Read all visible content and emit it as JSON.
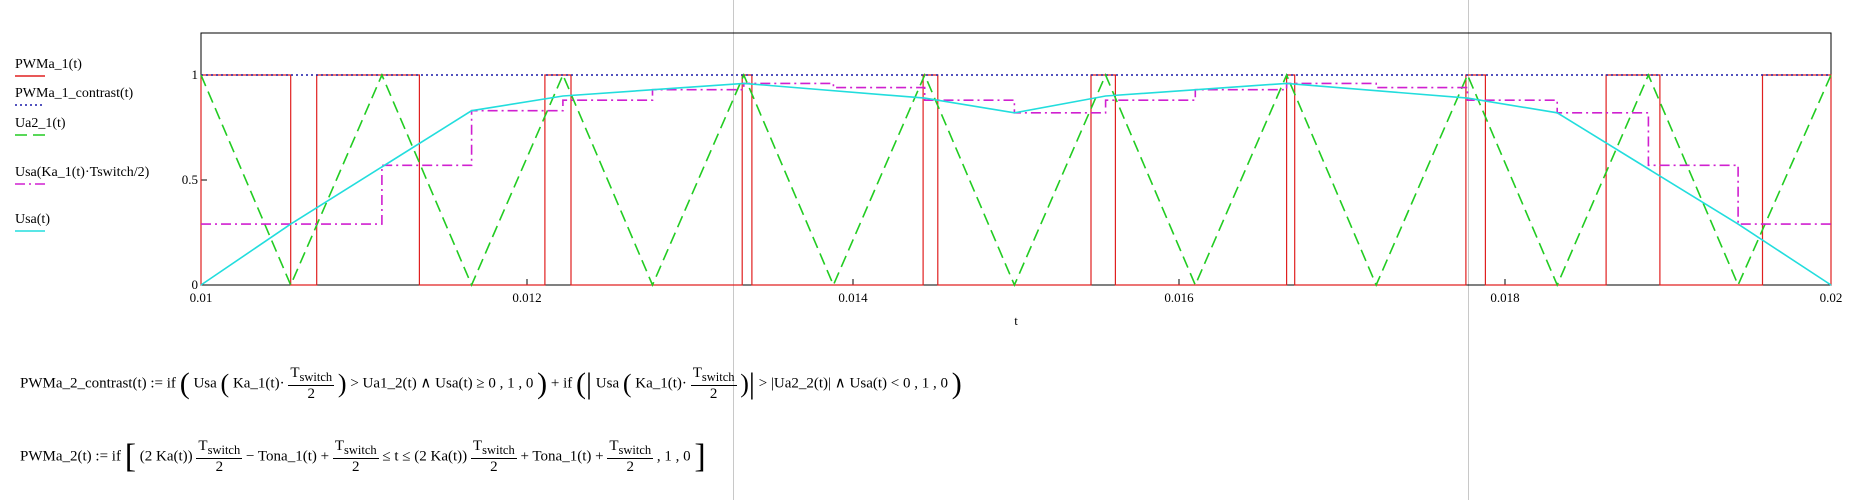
{
  "chart_data": {
    "type": "line",
    "xlabel": "t",
    "xlim": [
      0.01,
      0.02
    ],
    "ylim": [
      0,
      1.2
    ],
    "x_ticks": [
      {
        "value": 0.01,
        "label": "0.01"
      },
      {
        "value": 0.012,
        "label": "0.012"
      },
      {
        "value": 0.014,
        "label": "0.014"
      },
      {
        "value": 0.016,
        "label": "0.016"
      },
      {
        "value": 0.018,
        "label": "0.018"
      },
      {
        "value": 0.02,
        "label": "0.02"
      }
    ],
    "y_ticks": [
      {
        "value": 0,
        "label": "0"
      },
      {
        "value": 0.5,
        "label": "0.5"
      },
      {
        "value": 1,
        "label": "1"
      }
    ],
    "legend": {
      "position": "left",
      "entries": [
        "PWMa_1(t)",
        "PWMa_1_contrast(t)",
        "Ua2_1(t)",
        "Usa(Ka_1(t)·Tswitch/2)",
        "Usa(t)"
      ]
    },
    "series": [
      {
        "name": "PWMa_1(t)",
        "color": "#e02020",
        "style": "solid",
        "kind": "pulses",
        "pulses": [
          [
            0.01,
            0.01055
          ],
          [
            0.01071,
            0.01134
          ],
          [
            0.01211,
            0.01227
          ],
          [
            0.01332,
            0.01338
          ],
          [
            0.01443,
            0.01452
          ],
          [
            0.01546,
            0.01561
          ],
          [
            0.01666,
            0.01671
          ],
          [
            0.01776,
            0.01788
          ],
          [
            0.01862,
            0.01895
          ],
          [
            0.01958,
            0.02
          ]
        ]
      },
      {
        "name": "PWMa_1_contrast(t)",
        "color": "#1a1aa8",
        "style": "dotted",
        "kind": "constant",
        "value": 1
      },
      {
        "name": "Ua2_1(t)",
        "color": "#22cc22",
        "style": "dashed",
        "x": [
          0.01,
          0.01055,
          0.01111,
          0.01166,
          0.01222,
          0.01277,
          0.01333,
          0.01388,
          0.01444,
          0.01499,
          0.01555,
          0.0161,
          0.01666,
          0.01721,
          0.01777,
          0.01832,
          0.01888,
          0.01943,
          0.02
        ],
        "y": [
          1,
          0,
          1,
          0,
          1,
          0,
          1,
          0,
          1,
          0,
          1,
          0,
          1,
          0,
          1,
          0,
          1,
          0,
          1
        ]
      },
      {
        "name": "Usa(Ka_1(t)·Tswitch/2)",
        "color": "#d020d0",
        "style": "dashdot",
        "kind": "step",
        "x": [
          0.01,
          0.01111,
          0.01166,
          0.01222,
          0.01277,
          0.01333,
          0.01388,
          0.01444,
          0.01499,
          0.01555,
          0.0161,
          0.01666,
          0.01721,
          0.01777,
          0.01832,
          0.01888,
          0.01943,
          0.02
        ],
        "y": [
          0.29,
          0.57,
          0.83,
          0.88,
          0.93,
          0.96,
          0.94,
          0.88,
          0.82,
          0.88,
          0.93,
          0.96,
          0.94,
          0.88,
          0.82,
          0.57,
          0.29,
          0.29
        ]
      },
      {
        "name": "Usa(t)",
        "color": "#22dddd",
        "style": "solid",
        "x": [
          0.01,
          0.01055,
          0.01166,
          0.01222,
          0.01333,
          0.01444,
          0.01499,
          0.01555,
          0.01666,
          0.01777,
          0.01832,
          0.01943,
          0.02
        ],
        "y": [
          0,
          0.29,
          0.83,
          0.9,
          0.96,
          0.89,
          0.82,
          0.9,
          0.96,
          0.89,
          0.82,
          0.29,
          0
        ]
      }
    ]
  },
  "formulas": {
    "f1": {
      "lhs": "PWMa_2_contrast(t) := if",
      "usa1": "Usa",
      "ka1": "Ka_1(t)·",
      "tsw_num": "T",
      "tsw_sub": "switch",
      "den": "2",
      "cmp1": "> Ua1_2(t) ∧ Usa(t) ≥ 0 , 1 , 0",
      "plus_if": "+ if",
      "cmp2": "> |Ua2_2(t)| ∧ Usa(t) < 0 , 1 , 0"
    },
    "f2": {
      "lhs": "PWMa_2(t) := if",
      "k1": "(2 Ka(t))",
      "m1": "− Tona_1(t) +",
      "le": "≤ t ≤",
      "k2": "(2 Ka(t))",
      "m2": "+ Tona_1(t) +",
      "tail": ", 1 , 0",
      "tsw_num": "T",
      "tsw_sub": "switch",
      "den": "2"
    }
  }
}
